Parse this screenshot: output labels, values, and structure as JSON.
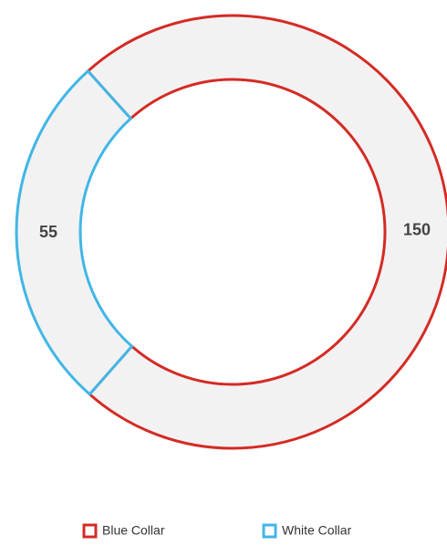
{
  "chart_data": {
    "type": "donut",
    "categories": [
      "Blue Collar",
      "White Collar"
    ],
    "values": [
      150,
      55
    ],
    "colors": [
      "#d42b25",
      "#41b6e6"
    ]
  }
}
